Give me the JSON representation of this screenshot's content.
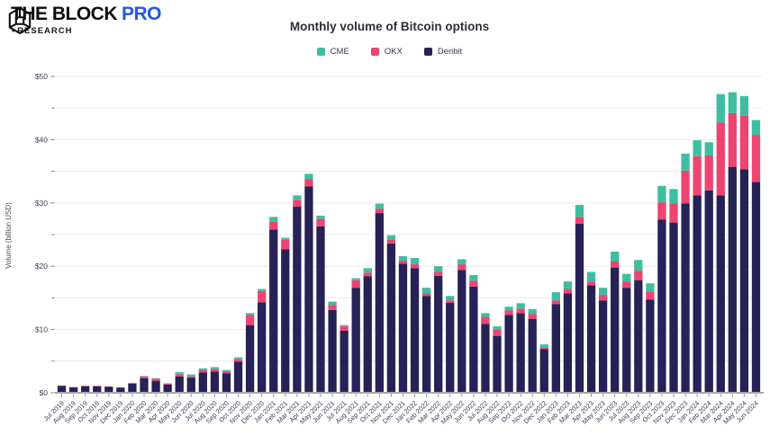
{
  "header": {
    "logo": {
      "brand": "THE BLOCK",
      "brand_suffix": "PRO",
      "sub_bullet": "•",
      "sub": "RESEARCH",
      "brand_color": "#0c0c10",
      "pro_color": "#2157e3"
    }
  },
  "palette": {
    "background": "#ffffff",
    "gridline": "#ececf1",
    "axis_line": "#a6a6b0",
    "tick_mark": "#8d8d99",
    "tick_text": "#3f415a",
    "axis_label_text": "#4a4a58"
  },
  "chart_data": {
    "type": "bar",
    "stacked": true,
    "title": "Monthly volume of Bitcoin options",
    "xlabel": "",
    "ylabel": "Volume (billion USD)",
    "ylim": [
      0,
      50
    ],
    "grid": true,
    "gridline_interval": 5,
    "ytick_label_interval": 10,
    "ytick_labels": [
      "$0",
      "$10",
      "$20",
      "$30",
      "$40",
      "$50"
    ],
    "legend_position": "top",
    "legend_order": [
      "CME",
      "OKX",
      "Deribit"
    ],
    "stack_order_bottom_to_top": [
      "Deribit",
      "OKX",
      "CME"
    ],
    "categories": [
      "Jul 2019",
      "Aug 2019",
      "Sep 2019",
      "Oct 2019",
      "Nov 2019",
      "Dec 2019",
      "Jan 2020",
      "Feb 2020",
      "Mar 2020",
      "Apr 2020",
      "May 2020",
      "Jun 2020",
      "Jul 2020",
      "Aug 2020",
      "Sep 2020",
      "Oct 2020",
      "Nov 2020",
      "Dec 2020",
      "Jan 2021",
      "Feb 2021",
      "Mar 2021",
      "Apr 2021",
      "May 2021",
      "Jun 2021",
      "Jul 2021",
      "Aug 2021",
      "Sep 2021",
      "Oct 2021",
      "Nov 2021",
      "Dec 2021",
      "Jan 2022",
      "Feb 2022",
      "Mar 2022",
      "Apr 2022",
      "May 2022",
      "Jun 2022",
      "Jul 2022",
      "Aug 2022",
      "Sep 2022",
      "Oct 2022",
      "Nov 2022",
      "Dec 2022",
      "Jan 2023",
      "Feb 2023",
      "Mar 2023",
      "Apr 2023",
      "May 2023",
      "Jun 2023",
      "Jul 2023",
      "Aug 2023",
      "Sep 2023",
      "Oct 2023",
      "Nov 2023",
      "Dec 2023",
      "Jan 2024",
      "Feb 2024",
      "Mar 2024",
      "Apr 2024",
      "May 2024",
      "Jun 2024"
    ],
    "series": [
      {
        "name": "CME",
        "color": "#3ebea0",
        "values": [
          0,
          0,
          0,
          0,
          0,
          0,
          0,
          0.05,
          0.05,
          0.05,
          0.3,
          0.3,
          0.3,
          0.3,
          0.25,
          0.3,
          0.3,
          0.3,
          0.7,
          0.3,
          0.7,
          0.8,
          0.5,
          0.5,
          0.2,
          0.3,
          0.7,
          0.8,
          0.7,
          0.7,
          1.0,
          0.9,
          0.9,
          0.7,
          0.8,
          0.9,
          0.6,
          0.5,
          0.6,
          0.85,
          0.75,
          0.5,
          1.3,
          1.2,
          1.9,
          1.5,
          1.1,
          1.5,
          1.2,
          1.7,
          1.3,
          2.6,
          2.3,
          2.7,
          2.5,
          2.1,
          4.5,
          3.3,
          3.1,
          2.4
        ]
      },
      {
        "name": "OKX",
        "color": "#ee4471",
        "values": [
          0.05,
          0.05,
          0.05,
          0.1,
          0.05,
          0.05,
          0.1,
          0.3,
          0.35,
          0.15,
          0.35,
          0.2,
          0.35,
          0.4,
          0.3,
          0.4,
          1.6,
          1.8,
          1.3,
          1.5,
          1.1,
          1.2,
          1.2,
          0.8,
          0.7,
          1.2,
          0.6,
          0.7,
          0.6,
          0.5,
          0.6,
          0.4,
          0.6,
          0.4,
          0.9,
          0.9,
          1.1,
          1.0,
          0.7,
          0.7,
          0.8,
          0.25,
          0.6,
          0.7,
          1.1,
          0.6,
          0.9,
          1.0,
          1.0,
          1.5,
          1.3,
          2.7,
          3.0,
          5.2,
          6.2,
          5.5,
          11.5,
          8.5,
          8.5,
          7.4
        ]
      },
      {
        "name": "Deribit",
        "color": "#272256",
        "values": [
          1.1,
          0.85,
          1.05,
          1.0,
          0.95,
          0.8,
          1.45,
          2.3,
          1.9,
          1.3,
          2.6,
          2.4,
          3.2,
          3.35,
          3.05,
          4.9,
          10.7,
          14.3,
          25.8,
          22.7,
          29.4,
          32.6,
          26.3,
          13.1,
          9.8,
          16.6,
          18.4,
          28.4,
          23.6,
          20.4,
          19.7,
          15.3,
          18.5,
          14.2,
          19.4,
          16.8,
          10.9,
          9.0,
          12.3,
          12.6,
          11.65,
          6.9,
          14.0,
          15.7,
          26.7,
          17.0,
          14.6,
          19.8,
          16.6,
          17.8,
          14.7,
          27.4,
          26.9,
          29.9,
          31.2,
          32.0,
          31.2,
          35.7,
          35.3,
          33.3
        ]
      }
    ]
  }
}
